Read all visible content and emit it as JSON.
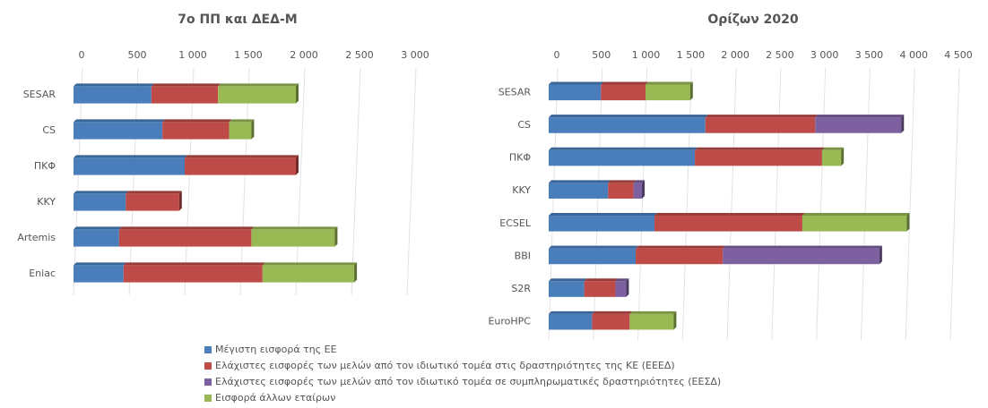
{
  "chart_data": [
    {
      "type": "bar",
      "orientation": "horizontal",
      "stacked": true,
      "title": "7o ΠΠ και ΔΕΔ-Μ",
      "categories": [
        "SESAR",
        "CS",
        "ΠΚΦ",
        "KKY",
        "Artemis",
        "Eniac"
      ],
      "xlim": [
        0,
        3000
      ],
      "xticks": [
        0,
        500,
        {
          "value": 1000,
          "label": "1 000"
        },
        {
          "value": 1500,
          "label": "1 500"
        },
        {
          "value": 2000,
          "label": "2 000"
        },
        {
          "value": 2500,
          "label": "2 500"
        },
        {
          "value": 3000,
          "label": "3 000"
        }
      ],
      "grid": true,
      "series": [
        {
          "name": "Μέγιστη εισφορά της ΕΕ",
          "color": "#4a7ebb",
          "values": [
            700,
            800,
            1000,
            470,
            410,
            450
          ]
        },
        {
          "name": "Ελάχιστες εισφορές των μελών από τον ιδιωτικό τομέα στις δραστηριότητες της ΚΕ (ΕΕΕΔ)",
          "color": "#be4b48",
          "values": [
            600,
            600,
            1000,
            480,
            1190,
            1250
          ]
        },
        {
          "name": "Εισφορά άλλων εταίρων",
          "color": "#98b954",
          "values": [
            700,
            200,
            null,
            null,
            750,
            825
          ]
        }
      ]
    },
    {
      "type": "bar",
      "orientation": "horizontal",
      "stacked": true,
      "title": "Ορίζων 2020",
      "categories": [
        "SESAR",
        "CS",
        "ΠΚΦ",
        "KKY",
        "ECSEL",
        "BBI",
        "S2R",
        "EuroHPC"
      ],
      "xlim": [
        0,
        4500
      ],
      "xticks": [
        0,
        500,
        {
          "value": 1000,
          "label": "1 000"
        },
        {
          "value": 1500,
          "label": "1 500"
        },
        {
          "value": 2000,
          "label": "2 000"
        },
        {
          "value": 2500,
          "label": "2 500"
        },
        {
          "value": 3000,
          "label": "3 000"
        },
        {
          "value": 3500,
          "label": "3 500"
        },
        {
          "value": 4000,
          "label": "4 000"
        },
        {
          "value": 4500,
          "label": "4 500"
        }
      ],
      "grid": true,
      "series": [
        {
          "name": "Μέγιστη εισφορά της ΕΕ",
          "color": "#4a7ebb",
          "values": [
            585,
            1755,
            1638,
            665,
            1185,
            975,
            398,
            486
          ]
        },
        {
          "name": "Ελάχιστες εισφορές των μελών από τον ιδιωτικό τομέα στις δραστηριότητες της ΚΕ (ΕΕΕΔ)",
          "color": "#be4b48",
          "values": [
            500,
            1230,
            1425,
            285,
            1657,
            975,
            350,
            422
          ]
        },
        {
          "name": "Ελάχιστες εισφορές των μελών από τον ιδιωτικό τομέα σε συμπληρωματικές δραστηριότητες (ΕΕΣΔ)",
          "color": "#7d60a0",
          "values": [
            null,
            965,
            null,
            95,
            null,
            1755,
            120,
            null
          ]
        },
        {
          "name": "Εισφορά άλλων εταίρων",
          "color": "#98b954",
          "values": [
            500,
            null,
            213,
            null,
            1170,
            null,
            null,
            492
          ]
        }
      ]
    }
  ]
}
